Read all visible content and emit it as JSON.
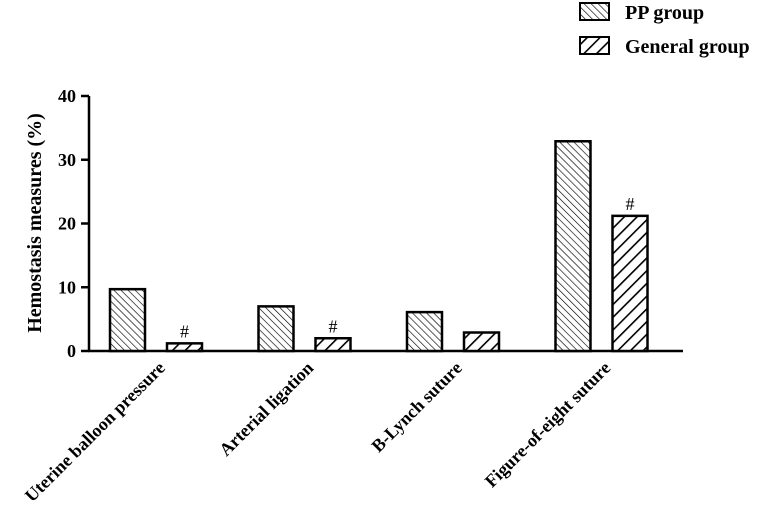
{
  "chart_data": {
    "type": "bar",
    "title": "",
    "xlabel": "",
    "ylabel": "Hemostasis measures (%)",
    "ylim": [
      0,
      40
    ],
    "yticks": [
      0,
      10,
      20,
      30,
      40
    ],
    "categories": [
      "Uterine balloon pressure",
      "Arterial ligation",
      "B-Lynch suture",
      "Figure-of-eight suture"
    ],
    "series": [
      {
        "name": "PP group",
        "values": [
          9.7,
          7.0,
          6.1,
          32.9
        ],
        "pattern": "dense-backslash-hatch"
      },
      {
        "name": "General group",
        "values": [
          1.2,
          2.0,
          2.9,
          21.2
        ],
        "pattern": "bold-slash-hatch"
      }
    ],
    "annotations": [
      {
        "series": "General group",
        "category": "Uterine balloon pressure",
        "text": "#"
      },
      {
        "series": "General group",
        "category": "Arterial ligation",
        "text": "#"
      },
      {
        "series": "General group",
        "category": "Figure-of-eight suture",
        "text": "#"
      }
    ],
    "grid": false,
    "legend_position": "top-right"
  }
}
